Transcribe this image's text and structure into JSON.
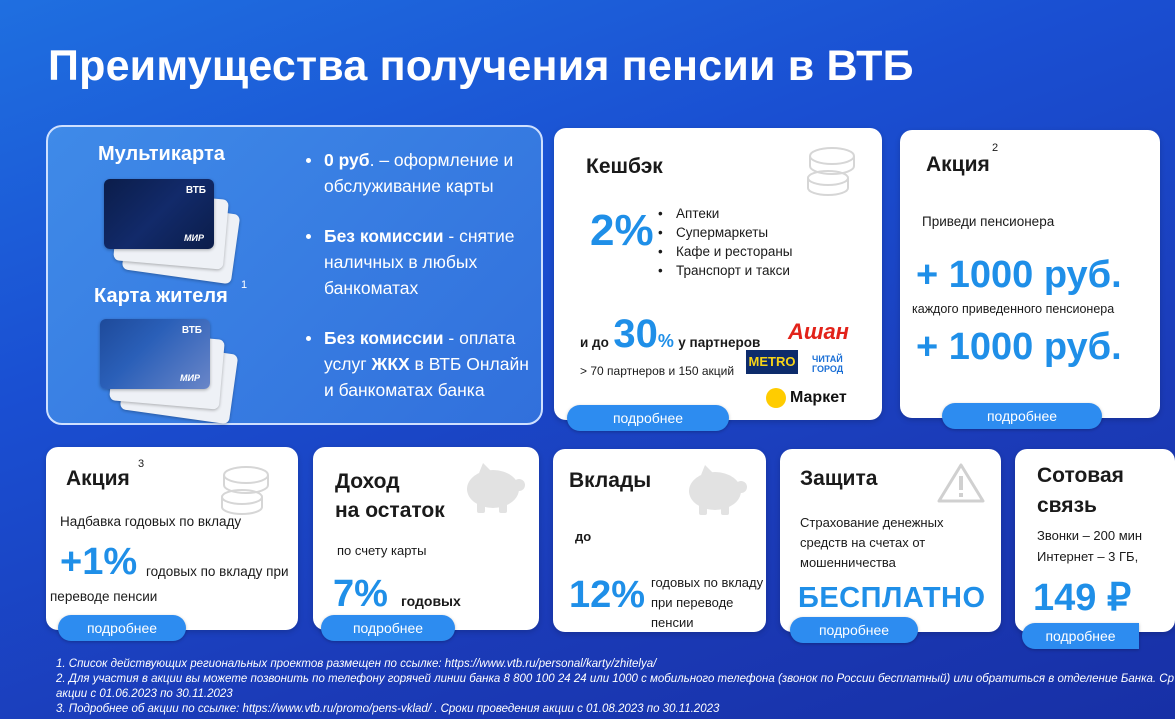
{
  "title": "Преимущества получения пенсии в ВТБ",
  "multicard": {
    "label1": "Мультикарта",
    "label2": "Карта жителя",
    "sup1": "1",
    "card_brand": "ВТБ",
    "card_pay": "МИР",
    "bullets": [
      {
        "bold": "0 руб",
        "line1_rest": ". – оформление и",
        "line2": "обслуживание карты"
      },
      {
        "bold": "Без комиссии",
        "line1_rest": " - снятие",
        "line2": "наличных в любых",
        "line3": "банкоматах"
      },
      {
        "bold": "Без комиссии",
        "line1_rest": " -  оплата",
        "line2_pre": "услуг ",
        "line2_bold": "ЖКХ",
        "line2_rest": " в ВТБ Онлайн",
        "line3": "и банкоматах банка"
      }
    ]
  },
  "cashback": {
    "title": "Кешбэк",
    "percent": "2%",
    "items": [
      "Аптеки",
      "Супермаркеты",
      "Кафе и рестораны",
      "Транспорт и такси"
    ],
    "upto_pre": "и до",
    "upto_value": "30",
    "upto_pct": "%",
    "upto_post": "у партнеров",
    "partners_note": "> 70 партнеров и 150 акций",
    "logos": {
      "auchan": "Ашан",
      "metro": "METRO",
      "chitai": "ЧИТАЙ ГОРОД",
      "market": "Маркет"
    },
    "button": "подробнее"
  },
  "promo2": {
    "title": "Акция",
    "sup": "2",
    "invite": "Приведи пенсионера",
    "amount1": "+ 1000 руб.",
    "each": "каждого приведенного пенсионера",
    "amount2": "+ 1000 руб.",
    "button": "подробнее"
  },
  "promo3": {
    "title": "Акция",
    "sup": "3",
    "subtitle": "Надбавка годовых по вкладу",
    "value": "+1%",
    "desc1": "годовых по вкладу при",
    "desc2": "переводе пенсии",
    "button": "подробнее"
  },
  "income": {
    "title1": "Доход",
    "title2": "на остаток",
    "sub": "по счету карты",
    "value": "7%",
    "unit": "годовых",
    "button": "подробнее"
  },
  "deposits": {
    "title": "Вклады",
    "pre": "до",
    "value": "12%",
    "desc1": "годовых по вкладу",
    "desc2": "при переводе",
    "desc3": "пенсии",
    "button": "подробнее"
  },
  "protection": {
    "title": "Защита",
    "desc1": "Страхование денежных",
    "desc2": "средств на счетах от",
    "desc3": "мошенничества",
    "value": "БЕСПЛАТНО",
    "button": "подробнее"
  },
  "mobile": {
    "title1": "Сотовая",
    "title2": "связь",
    "line1": "Звонки – 200 мин",
    "line2": "Интернет – 3 ГБ,",
    "price": "149 ₽",
    "button": "подробнее"
  },
  "footnotes": [
    "1. Список действующих региональных проектов размещен по ссылке: https://www.vtb.ru/personal/karty/zhitelya/",
    "2. Для участия в акции вы можете позвонить по телефону горячей линии банка 8 800 100 24 24 или 1000 с мобильного телефона (звонок по России бесплатный) или обратиться в отделение Банка. Ср",
    "акции с 01.06.2023 по 30.11.2023",
    "3. Подробнее об акции по ссылке: https://www.vtb.ru/promo/pens-vklad/ . Сроки проведения акции с 01.08.2023 по 30.11.2023"
  ],
  "colors": {
    "accent": "#1f8fe8",
    "button": "#2d8cf0",
    "bg": "#1a4fd2"
  }
}
